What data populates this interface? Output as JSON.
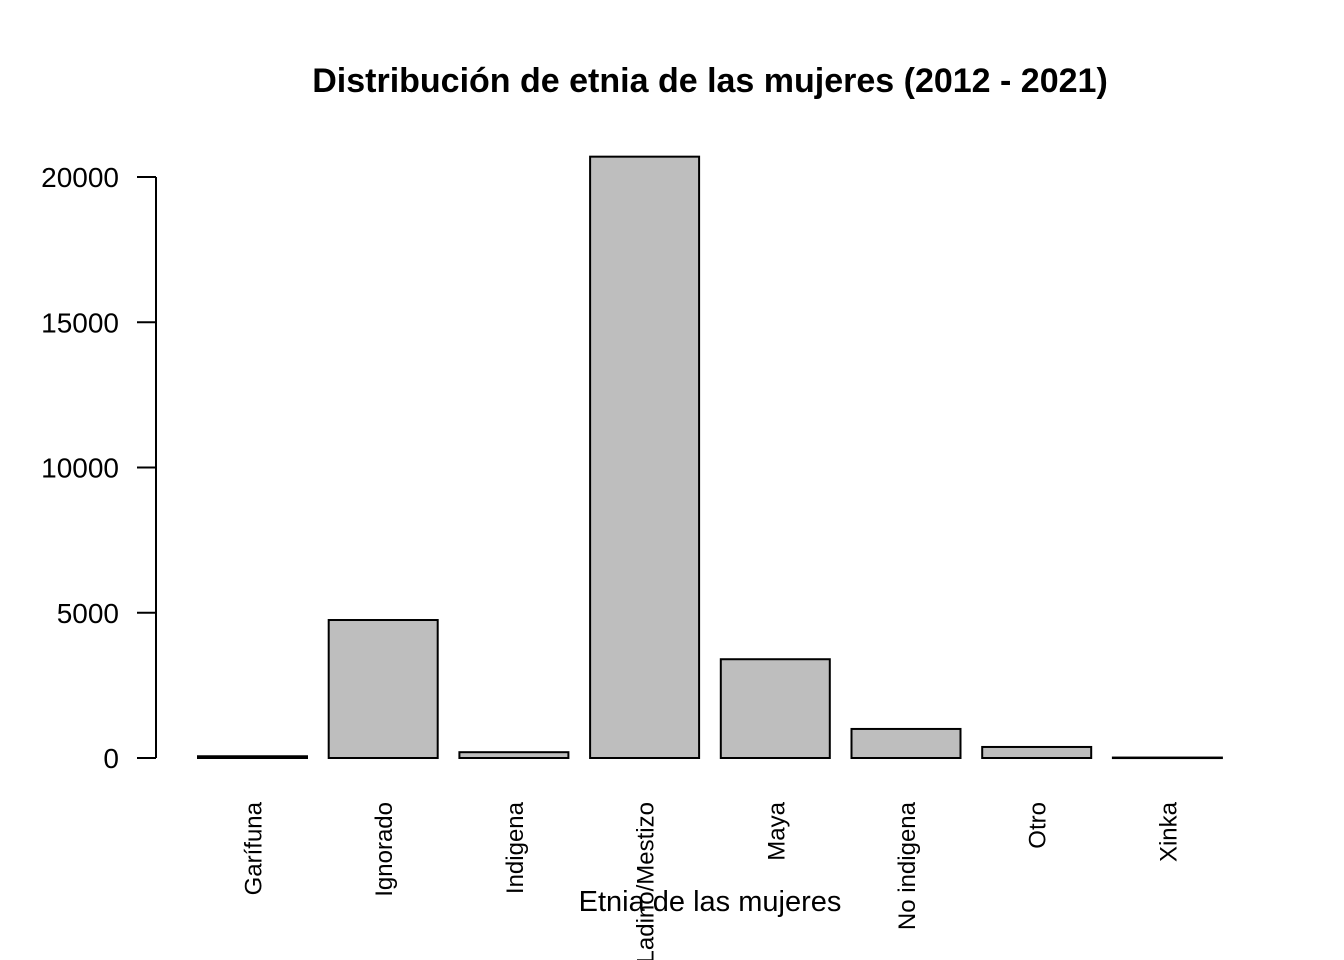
{
  "chart_data": {
    "type": "bar",
    "title": "Distribución de etnia de las mujeres (2012 - 2021)",
    "xlabel": "Etnia de las mujeres",
    "ylabel": "",
    "categories": [
      "Garífuna",
      "Ignorado",
      "Indigena",
      "Ladino/Mestizo",
      "Maya",
      "No indigena",
      "Otro",
      "Xinka"
    ],
    "values": [
      60,
      4750,
      200,
      20700,
      3400,
      1000,
      380,
      15
    ],
    "ylim": [
      0,
      20000
    ],
    "yticks": [
      0,
      5000,
      10000,
      15000,
      20000
    ],
    "ytick_labels": [
      "0",
      "5000",
      "10000",
      "15000",
      "20000"
    ],
    "bar_color": "#bebebe",
    "grid": false,
    "legend": "none"
  }
}
